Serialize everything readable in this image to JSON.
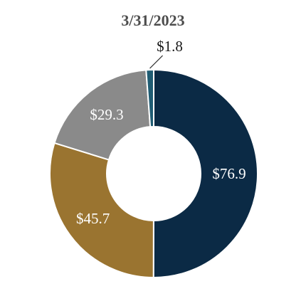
{
  "chart_data": {
    "type": "pie",
    "title": "3/31/2023",
    "unit": "$",
    "slices": [
      {
        "label": "$76.9",
        "value": 76.9,
        "color": "#0b2a45",
        "label_color": "#ffffff"
      },
      {
        "label": "$45.7",
        "value": 45.7,
        "color": "#9a7430",
        "label_color": "#ffffff"
      },
      {
        "label": "$29.3",
        "value": 29.3,
        "color": "#8a8a8a",
        "label_color": "#ffffff"
      },
      {
        "label": "$1.8",
        "value": 1.8,
        "color": "#1f5c73",
        "label_color": "#1a1a1a"
      }
    ],
    "donut": true
  }
}
